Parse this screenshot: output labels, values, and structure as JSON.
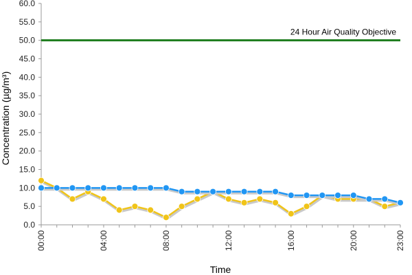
{
  "chart_data": {
    "type": "line",
    "xlabel": "Time",
    "ylabel": "Concentration (µg/m³)",
    "ylim": [
      0,
      60
    ],
    "y_ticks": [
      "0.0",
      "5.0",
      "10.0",
      "15.0",
      "20.0",
      "25.0",
      "30.0",
      "35.0",
      "40.0",
      "45.0",
      "50.0",
      "55.0",
      "60.0"
    ],
    "x_tick_labels": [
      "00:00",
      "04:00",
      "08:00",
      "12:00",
      "16:00",
      "20:00",
      "23:00"
    ],
    "grid": false,
    "series": [
      {
        "color": "#f0c419",
        "values": [
          12,
          10,
          7,
          9,
          7,
          4,
          5,
          4,
          2,
          5,
          7,
          9,
          7,
          6,
          7,
          6,
          3,
          5,
          8,
          7,
          7,
          7,
          5,
          6
        ]
      },
      {
        "color": "#2196f3",
        "values": [
          10,
          10,
          10,
          10,
          10,
          10,
          10,
          10,
          10,
          9,
          9,
          9,
          9,
          9,
          9,
          9,
          8,
          8,
          8,
          8,
          8,
          7,
          7,
          6
        ]
      }
    ],
    "objective": {
      "value": 50,
      "label": "24 Hour Air Quality Objective",
      "color": "#1e7d1e"
    }
  }
}
